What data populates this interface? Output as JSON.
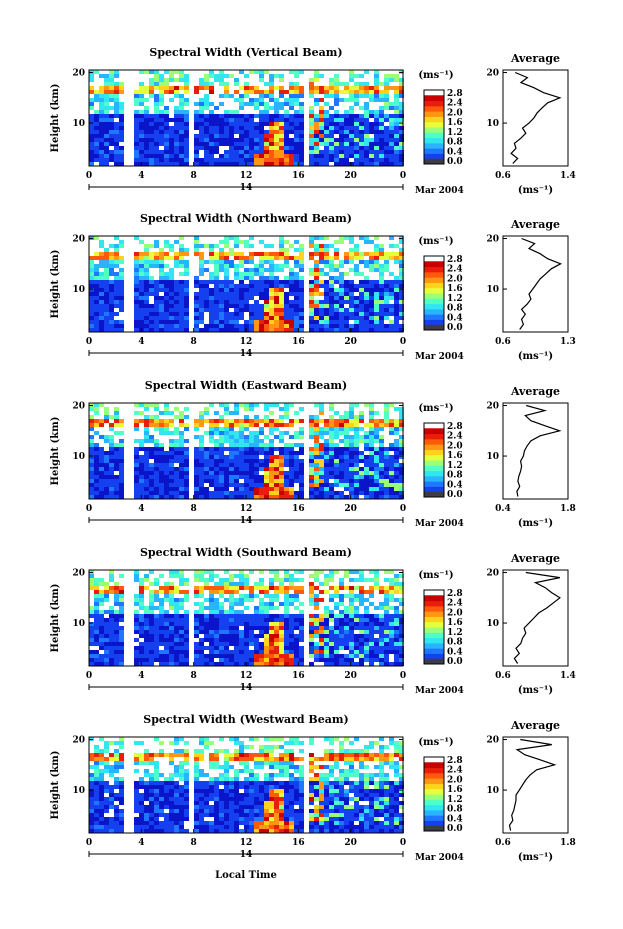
{
  "figure": {
    "xlabel": "Local Time",
    "date_label": "Mar 2004",
    "date_tick": "14",
    "cbar_unit": "(ms⁻¹)",
    "avg_title": "Average",
    "avg_xlabel": "(ms⁻¹)",
    "ylabel": "Height (km)"
  },
  "colors": {
    "colormap": [
      "#0a14c8",
      "#1440f0",
      "#1e78ff",
      "#28b4ff",
      "#32e6f0",
      "#50ffc8",
      "#9cff78",
      "#e6ff3c",
      "#ffd21e",
      "#ff9614",
      "#ff5a0a",
      "#e61e0a",
      "#c80000"
    ],
    "lowest": "#3c3c46"
  },
  "chart_data": [
    {
      "type": "heatmap",
      "title": "Spectral Width (Vertical Beam)",
      "x_ticks": [
        "0",
        "4",
        "8",
        "12",
        "16",
        "20",
        "0"
      ],
      "y_ticks": [
        "20",
        "10"
      ],
      "xlim": [
        0,
        24
      ],
      "ylim": [
        1.5,
        20.5
      ],
      "colorbar_ticks": [
        "0.0",
        "0.4",
        "0.8",
        "1.2",
        "1.6",
        "2.0",
        "2.4",
        "2.8"
      ],
      "clim": [
        0,
        3.0
      ],
      "data_gaps_hours": [
        [
          2.5,
          3.4
        ],
        [
          7.6,
          7.9
        ],
        [
          16.5,
          16.8
        ]
      ],
      "features": {
        "strong_event": {
          "hours": [
            12.5,
            15.5
          ],
          "height_km": [
            2,
            10
          ],
          "peak_ms": 2.8
        }
      },
      "average_profile": {
        "x_ticks": [
          "0.6",
          "1.4"
        ],
        "xlim": [
          0.6,
          1.4
        ],
        "height_km": [
          2,
          3,
          4,
          5,
          6,
          7,
          8,
          9,
          10,
          11,
          12,
          13,
          14,
          15,
          16,
          17,
          18,
          19,
          20
        ],
        "values": [
          0.72,
          0.78,
          0.7,
          0.76,
          0.74,
          0.82,
          0.88,
          0.84,
          0.92,
          0.98,
          1.02,
          1.08,
          1.15,
          1.3,
          1.1,
          0.98,
          0.82,
          0.9,
          0.75
        ]
      }
    },
    {
      "type": "heatmap",
      "title": "Spectral Width (Northward Beam)",
      "x_ticks": [
        "0",
        "4",
        "8",
        "12",
        "16",
        "20",
        "0"
      ],
      "y_ticks": [
        "20",
        "10"
      ],
      "xlim": [
        0,
        24
      ],
      "ylim": [
        1.5,
        20.5
      ],
      "colorbar_ticks": [
        "0.0",
        "0.4",
        "0.8",
        "1.2",
        "1.6",
        "2.0",
        "2.4",
        "2.8"
      ],
      "clim": [
        0,
        3.0
      ],
      "data_gaps_hours": [
        [
          2.5,
          3.4
        ],
        [
          7.6,
          7.9
        ],
        [
          16.5,
          16.8
        ]
      ],
      "features": {
        "strong_event": {
          "hours": [
            12.5,
            15.5
          ],
          "height_km": [
            2,
            10
          ],
          "peak_ms": 2.8
        }
      },
      "average_profile": {
        "x_ticks": [
          "0.6",
          "1.3"
        ],
        "xlim": [
          0.6,
          1.3
        ],
        "height_km": [
          2,
          3,
          4,
          5,
          6,
          7,
          8,
          9,
          10,
          11,
          12,
          13,
          14,
          15,
          16,
          17,
          18,
          19,
          20
        ],
        "values": [
          0.78,
          0.82,
          0.8,
          0.84,
          0.8,
          0.86,
          0.9,
          0.88,
          0.92,
          0.96,
          1.0,
          1.06,
          1.12,
          1.22,
          1.08,
          1.0,
          0.88,
          0.94,
          0.8
        ]
      }
    },
    {
      "type": "heatmap",
      "title": "Spectral Width (Eastward Beam)",
      "x_ticks": [
        "0",
        "4",
        "8",
        "12",
        "16",
        "20",
        "0"
      ],
      "y_ticks": [
        "20",
        "10"
      ],
      "xlim": [
        0,
        24
      ],
      "ylim": [
        1.5,
        20.5
      ],
      "colorbar_ticks": [
        "0.0",
        "0.4",
        "0.8",
        "1.2",
        "1.6",
        "2.0",
        "2.4",
        "2.8"
      ],
      "clim": [
        0,
        3.0
      ],
      "data_gaps_hours": [
        [
          2.5,
          3.4
        ],
        [
          7.6,
          7.9
        ],
        [
          16.5,
          16.8
        ]
      ],
      "features": {
        "strong_event": {
          "hours": [
            12.5,
            15.5
          ],
          "height_km": [
            2,
            10
          ],
          "peak_ms": 2.8
        }
      },
      "average_profile": {
        "x_ticks": [
          "0.4",
          "1.8"
        ],
        "xlim": [
          0.4,
          1.8
        ],
        "height_km": [
          2,
          3,
          4,
          5,
          6,
          7,
          8,
          9,
          10,
          11,
          12,
          13,
          14,
          15,
          16,
          17,
          18,
          19,
          20
        ],
        "values": [
          0.72,
          0.7,
          0.76,
          0.72,
          0.74,
          0.78,
          0.8,
          0.78,
          0.84,
          0.86,
          0.92,
          1.0,
          1.2,
          1.62,
          1.3,
          1.0,
          0.88,
          1.3,
          0.9
        ]
      }
    },
    {
      "type": "heatmap",
      "title": "Spectral Width (Southward Beam)",
      "x_ticks": [
        "0",
        "4",
        "8",
        "12",
        "16",
        "20",
        "0"
      ],
      "y_ticks": [
        "20",
        "10"
      ],
      "xlim": [
        0,
        24
      ],
      "ylim": [
        1.5,
        20.5
      ],
      "colorbar_ticks": [
        "0.0",
        "0.4",
        "0.8",
        "1.2",
        "1.6",
        "2.0",
        "2.4",
        "2.8"
      ],
      "clim": [
        0,
        3.0
      ],
      "data_gaps_hours": [
        [
          2.5,
          3.4
        ],
        [
          7.6,
          7.9
        ],
        [
          16.5,
          16.8
        ]
      ],
      "features": {
        "strong_event": {
          "hours": [
            12.5,
            15.5
          ],
          "height_km": [
            2,
            10
          ],
          "peak_ms": 2.8
        }
      },
      "average_profile": {
        "x_ticks": [
          "0.6",
          "1.4"
        ],
        "xlim": [
          0.6,
          1.4
        ],
        "height_km": [
          2,
          3,
          4,
          5,
          6,
          7,
          8,
          9,
          10,
          11,
          12,
          13,
          14,
          15,
          16,
          17,
          18,
          19,
          20
        ],
        "values": [
          0.78,
          0.74,
          0.8,
          0.76,
          0.82,
          0.84,
          0.88,
          0.86,
          0.92,
          0.98,
          1.04,
          1.14,
          1.22,
          1.3,
          1.2,
          1.12,
          1.0,
          1.3,
          0.88
        ]
      }
    },
    {
      "type": "heatmap",
      "title": "Spectral Width (Westward Beam)",
      "x_ticks": [
        "0",
        "4",
        "8",
        "12",
        "16",
        "20",
        "0"
      ],
      "y_ticks": [
        "20",
        "10"
      ],
      "xlim": [
        0,
        24
      ],
      "ylim": [
        1.5,
        20.5
      ],
      "colorbar_ticks": [
        "0.0",
        "0.4",
        "0.8",
        "1.2",
        "1.6",
        "2.0",
        "2.4",
        "2.8"
      ],
      "clim": [
        0,
        3.0
      ],
      "data_gaps_hours": [
        [
          2.5,
          3.4
        ],
        [
          7.6,
          7.9
        ],
        [
          16.5,
          16.8
        ]
      ],
      "features": {
        "strong_event": {
          "hours": [
            12.5,
            15.5
          ],
          "height_km": [
            2,
            10
          ],
          "peak_ms": 2.8
        }
      },
      "average_profile": {
        "x_ticks": [
          "0.6",
          "1.8"
        ],
        "xlim": [
          0.6,
          1.8
        ],
        "height_km": [
          2,
          3,
          4,
          5,
          6,
          7,
          8,
          9,
          10,
          11,
          12,
          13,
          14,
          15,
          16,
          17,
          18,
          19,
          20
        ],
        "values": [
          0.74,
          0.72,
          0.78,
          0.76,
          0.8,
          0.82,
          0.84,
          0.84,
          0.9,
          0.96,
          1.02,
          1.1,
          1.22,
          1.55,
          1.28,
          1.0,
          0.86,
          1.5,
          0.92
        ]
      }
    }
  ]
}
